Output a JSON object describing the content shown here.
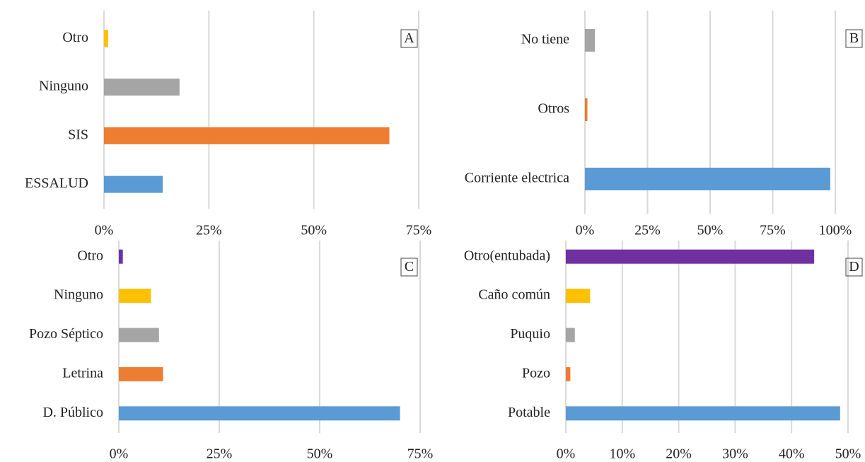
{
  "chart_data": [
    {
      "type": "bar",
      "orientation": "horizontal",
      "label": "A",
      "categories": [
        "ESSALUD",
        "SIS",
        "Ninguno",
        "Otro"
      ],
      "values": [
        14,
        68,
        18,
        1
      ],
      "colors": [
        "#5b9bd5",
        "#ed7d31",
        "#a5a5a5",
        "#ffc000"
      ],
      "xlim": [
        0,
        75
      ],
      "xticks": [
        {
          "value": 0,
          "label": "0%"
        },
        {
          "value": 25,
          "label": "25%"
        },
        {
          "value": 50,
          "label": "50%"
        },
        {
          "value": 75,
          "label": "75%"
        }
      ],
      "grid": true
    },
    {
      "type": "bar",
      "orientation": "horizontal",
      "label": "B",
      "categories": [
        "Corriente electrica",
        "Otros",
        "No tiene"
      ],
      "values": [
        98,
        1,
        4
      ],
      "colors": [
        "#5b9bd5",
        "#ed7d31",
        "#a5a5a5"
      ],
      "xlim": [
        0,
        100
      ],
      "xticks": [
        {
          "value": 0,
          "label": "0%"
        },
        {
          "value": 25,
          "label": "25%"
        },
        {
          "value": 50,
          "label": "50%"
        },
        {
          "value": 75,
          "label": "75%"
        },
        {
          "value": 100,
          "label": "100%"
        }
      ],
      "grid": true
    },
    {
      "type": "bar",
      "orientation": "horizontal",
      "label": "C",
      "categories": [
        "D. Público",
        "Letrina",
        "Pozo Séptico",
        "Ninguno",
        "Otro"
      ],
      "values": [
        70,
        11,
        10,
        8,
        1
      ],
      "colors": [
        "#5b9bd5",
        "#ed7d31",
        "#a5a5a5",
        "#ffc000",
        "#7030a0"
      ],
      "xlim": [
        0,
        75
      ],
      "xticks": [
        {
          "value": 0,
          "label": "0%"
        },
        {
          "value": 25,
          "label": "25%"
        },
        {
          "value": 50,
          "label": "50%"
        },
        {
          "value": 75,
          "label": "75%"
        }
      ],
      "grid": true
    },
    {
      "type": "bar",
      "orientation": "horizontal",
      "label": "D",
      "categories": [
        "Potable",
        "Pozo",
        "Puquio",
        "Caño común",
        "Otro(entubada)"
      ],
      "values": [
        48.6,
        0.8,
        1.6,
        4.3,
        44
      ],
      "colors": [
        "#5b9bd5",
        "#ed7d31",
        "#a5a5a5",
        "#ffc000",
        "#7030a0"
      ],
      "xlim": [
        0,
        50
      ],
      "xticks": [
        {
          "value": 0,
          "label": "0%"
        },
        {
          "value": 10,
          "label": "10%"
        },
        {
          "value": 20,
          "label": "20%"
        },
        {
          "value": 30,
          "label": "30%"
        },
        {
          "value": 40,
          "label": "40%"
        },
        {
          "value": 50,
          "label": "50%"
        }
      ],
      "grid": true
    }
  ]
}
